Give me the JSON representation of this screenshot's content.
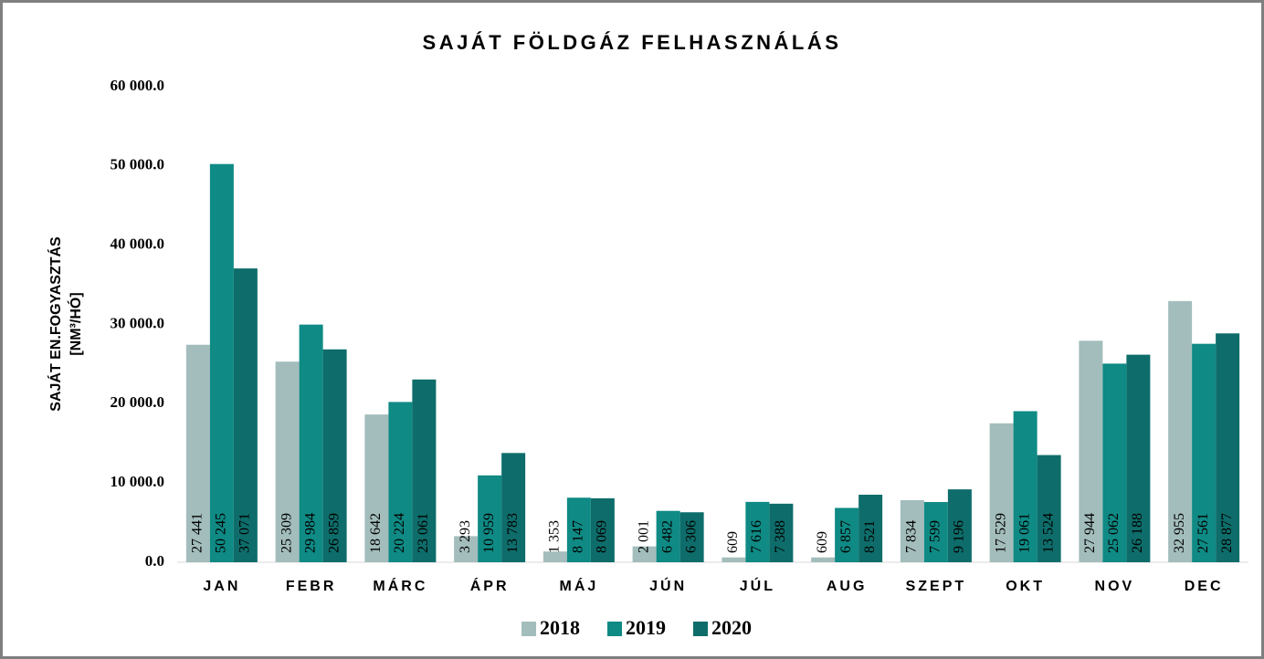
{
  "chart_data": {
    "type": "bar",
    "title": "SAJÁT FÖLDGÁZ FELHASZNÁLÁS",
    "ylabel": [
      "SAJÁT EN.FOGYASZTÁS",
      "[NM³/HÓ]"
    ],
    "categories": [
      "JAN",
      "FEBR",
      "MÁRC",
      "ÁPR",
      "MÁJ",
      "JÚN",
      "JÚL",
      "AUG",
      "SZEPT",
      "OKT",
      "NOV",
      "DEC"
    ],
    "series": [
      {
        "name": "2018",
        "color": "#a3bdbc",
        "values": [
          27441,
          25309,
          18642,
          3293,
          1353,
          2001,
          609,
          609,
          7834,
          17529,
          27944,
          32955
        ],
        "value_labels": [
          "27 441",
          "25 309",
          "18 642",
          "3 293",
          "1 353",
          "2 001",
          "609",
          "609",
          "7 834",
          "17 529",
          "27 944",
          "32 955"
        ]
      },
      {
        "name": "2019",
        "color": "#0f8a84",
        "values": [
          50245,
          29984,
          20224,
          10959,
          8147,
          6482,
          7616,
          6857,
          7599,
          19061,
          25062,
          27561
        ],
        "value_labels": [
          "50 245",
          "29 984",
          "20 224",
          "10 959",
          "8 147",
          "6 482",
          "7 616",
          "6 857",
          "7 599",
          "19 061",
          "25 062",
          "27 561"
        ]
      },
      {
        "name": "2020",
        "color": "#0e6d6a",
        "values": [
          37071,
          26859,
          23061,
          13783,
          8069,
          6306,
          7388,
          8521,
          9196,
          13524,
          26188,
          28877
        ],
        "value_labels": [
          "37 071",
          "26 859",
          "23 061",
          "13 783",
          "8 069",
          "6 306",
          "7 388",
          "8 521",
          "9 196",
          "13 524",
          "26 188",
          "28 877"
        ]
      }
    ],
    "ylim": [
      0,
      60000
    ],
    "yticks": [
      {
        "value": 0,
        "label": "0.0"
      },
      {
        "value": 10000,
        "label": "10 000.0"
      },
      {
        "value": 20000,
        "label": "20 000.0"
      },
      {
        "value": 30000,
        "label": "30 000.0"
      },
      {
        "value": 40000,
        "label": "40 000.0"
      },
      {
        "value": 50000,
        "label": "50 000.0"
      },
      {
        "value": 60000,
        "label": "60 000.0"
      }
    ],
    "grid": false,
    "legend": "bottom"
  }
}
